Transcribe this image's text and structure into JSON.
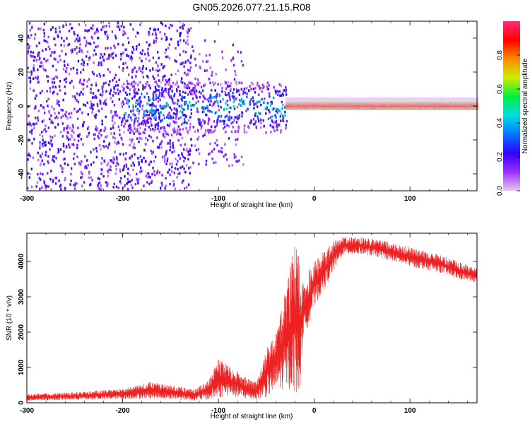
{
  "figure": {
    "title": "GN05.2026.077.21.15.R08"
  },
  "chart_data": [
    {
      "type": "heatmap",
      "xlabel": "Height of straight line (km)",
      "ylabel": "Frequency (Hz)",
      "xlim": [
        -300,
        170
      ],
      "ylim": [
        -50,
        50
      ],
      "x_ticks": [
        -300,
        -200,
        -100,
        0,
        100
      ],
      "y_ticks": [
        -40,
        -20,
        0,
        20,
        40
      ],
      "colorbar": {
        "label": "Normalized spectral amplitude",
        "range": [
          0,
          1
        ],
        "ticks": [
          "0.0",
          "0.2",
          "0.4",
          "0.6",
          "0.8"
        ],
        "tick_values": [
          0.0,
          0.2,
          0.4,
          0.6,
          0.8
        ],
        "colormap": [
          "#e8c8f0",
          "#9b30ff",
          "#3300ff",
          "#0077ff",
          "#00dddd",
          "#00ee44",
          "#ccee00",
          "#ff8800",
          "#ff0000",
          "#ff2a7f"
        ]
      },
      "grid": false,
      "description_of_field": [
        {
          "x_range": [
            -300,
            -130
          ],
          "freq_spread_hz": [
            -50,
            50
          ],
          "amplitude": [
            0.05,
            0.25
          ]
        },
        {
          "x_range": [
            -130,
            -75
          ],
          "freq_spread_hz": [
            -35,
            40
          ],
          "amplitude": [
            0.05,
            0.2
          ]
        },
        {
          "x_range": [
            -200,
            -30
          ],
          "freq_spread_hz": [
            -15,
            15
          ],
          "amplitude": [
            0.15,
            0.6
          ]
        },
        {
          "x_range": [
            -30,
            170
          ],
          "freq_spread_hz": [
            -2,
            2
          ],
          "amplitude": [
            0.7,
            1.0
          ]
        }
      ]
    },
    {
      "type": "line",
      "xlabel": "Height of straight line (km)",
      "ylabel": "SNR (10 * v/v)",
      "xlim": [
        -300,
        170
      ],
      "ylim": [
        0,
        4800
      ],
      "x_ticks": [
        -300,
        -200,
        -100,
        0,
        100
      ],
      "y_ticks": [
        0,
        1000,
        2000,
        3000,
        4000
      ],
      "color": "#ee2222",
      "grid": false,
      "envelope": {
        "x": [
          -300,
          -250,
          -200,
          -170,
          -150,
          -125,
          -110,
          -100,
          -90,
          -80,
          -70,
          -60,
          -50,
          -40,
          -30,
          -20,
          -15,
          -12,
          -10,
          -5,
          0,
          10,
          20,
          30,
          50,
          70,
          100,
          130,
          150,
          170
        ],
        "low": [
          60,
          80,
          100,
          120,
          100,
          60,
          80,
          120,
          200,
          150,
          100,
          80,
          150,
          300,
          400,
          300,
          100,
          1800,
          1900,
          2300,
          2700,
          3200,
          3700,
          4200,
          4200,
          4100,
          3850,
          3700,
          3500,
          3400
        ],
        "high": [
          250,
          300,
          400,
          600,
          500,
          380,
          650,
          1250,
          1100,
          900,
          700,
          600,
          1500,
          2200,
          3200,
          4600,
          4000,
          3300,
          3400,
          3800,
          4000,
          4300,
          4600,
          4700,
          4700,
          4600,
          4400,
          4200,
          4000,
          3800
        ]
      }
    }
  ]
}
